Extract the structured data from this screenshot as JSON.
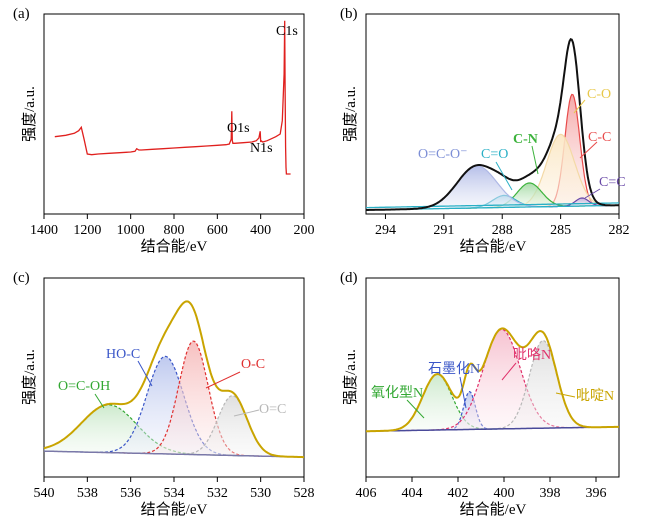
{
  "colors": {
    "axis": "#000000",
    "survey": "#e0201e",
    "c1s_envelope": "#111111",
    "c1s_baseline": "#2ab0c6",
    "c_c": "#e84a4a",
    "c_o": "#e8c84a",
    "c_n": "#3db33d",
    "c_eq_o": "#2ab0c6",
    "o_c_o": "#7d8fd6",
    "c_eq_c": "#6a4aa8",
    "o1s_envelope": "#c9a400",
    "o_c": "#e03030",
    "ho_c": "#3a56c8",
    "o_c_oh": "#33a833",
    "o_eq_c": "#b8b8b8",
    "o1s_baseline": "#7a78a8",
    "n1s_envelope": "#c9a400",
    "pyridinic": "#33a833",
    "graphitic": "#3a56c8",
    "pyrrolic": "#e0306a",
    "pyridine_n": "#b8b8b8",
    "n1s_baseline": "#4a4a9a"
  },
  "chart_data": [
    {
      "panel_label": "(a)",
      "type": "line",
      "xlabel": "结合能/eV",
      "ylabel": "强度/a.u.",
      "xlim": [
        1400,
        200
      ],
      "x_ticks": [
        1400,
        1200,
        1000,
        800,
        600,
        400,
        200
      ],
      "series": [
        {
          "x": [
            1350,
            1300,
            1260,
            1240,
            1228,
            1215,
            1200,
            1180,
            1150,
            1100,
            1050,
            1000,
            980,
            972,
            962,
            950,
            900,
            850,
            800,
            750,
            700,
            650,
            600,
            560,
            545,
            536,
            533,
            531,
            528,
            520,
            480,
            440,
            420,
            408,
            402,
            400,
            398,
            390,
            370,
            350,
            330,
            310,
            300,
            292,
            289,
            287,
            285,
            283,
            281,
            275,
            268,
            262
          ],
          "y": [
            0.13,
            0.14,
            0.155,
            0.175,
            0.2,
            0.11,
            0.0,
            -0.005,
            0.0,
            0.005,
            0.01,
            0.015,
            0.02,
            0.04,
            0.03,
            0.03,
            0.035,
            0.04,
            0.045,
            0.05,
            0.055,
            0.06,
            0.065,
            0.07,
            0.075,
            0.11,
            0.32,
            0.1,
            0.08,
            0.08,
            0.085,
            0.09,
            0.1,
            0.12,
            0.17,
            0.09,
            0.1,
            0.09,
            0.1,
            0.115,
            0.13,
            0.15,
            0.25,
            0.6,
            1.0,
            0.5,
            0.05,
            -0.1,
            -0.15,
            -0.15,
            -0.15,
            -0.15
          ]
        }
      ],
      "annotations": [
        "C1s",
        "O1s",
        "N1s"
      ]
    },
    {
      "panel_label": "(b)",
      "type": "line",
      "xlabel": "结合能/eV",
      "ylabel": "强度/a.u.",
      "xlim": [
        295,
        282
      ],
      "x_ticks": [
        294,
        291,
        288,
        285,
        282
      ],
      "components": [
        {
          "label": "C-C",
          "center": 284.4,
          "fwhm": 0.9,
          "height": 0.56
        },
        {
          "label": "C-O",
          "center": 285.0,
          "fwhm": 1.7,
          "height": 0.36
        },
        {
          "label": "C-N",
          "center": 286.6,
          "fwhm": 1.5,
          "height": 0.12
        },
        {
          "label": "C=O",
          "center": 287.9,
          "fwhm": 1.4,
          "height": 0.06
        },
        {
          "label": "O=C-O⁻",
          "center": 289.3,
          "fwhm": 2.4,
          "height": 0.21
        },
        {
          "label": "C=C",
          "center": 283.9,
          "fwhm": 0.8,
          "height": 0.04
        }
      ],
      "annotations": [
        "C-O",
        "C-C",
        "C-N",
        "C=O",
        "O=C-O⁻",
        "C=C"
      ]
    },
    {
      "panel_label": "(c)",
      "type": "line",
      "xlabel": "结合能/eV",
      "ylabel": "强度/a.u.",
      "xlim": [
        540,
        528
      ],
      "x_ticks": [
        540,
        538,
        536,
        534,
        532,
        530,
        528
      ],
      "components": [
        {
          "label": "O=C-OH",
          "center": 537.0,
          "fwhm": 3.0,
          "height": 0.24
        },
        {
          "label": "HO-C",
          "center": 534.4,
          "fwhm": 2.0,
          "height": 0.49
        },
        {
          "label": "O-C",
          "center": 533.1,
          "fwhm": 1.6,
          "height": 0.57
        },
        {
          "label": "O=C",
          "center": 531.3,
          "fwhm": 1.6,
          "height": 0.3
        }
      ],
      "annotations": [
        "O=C-OH",
        "HO-C",
        "O-C",
        "O=C"
      ]
    },
    {
      "panel_label": "(d)",
      "type": "line",
      "xlabel": "结合能/eV",
      "ylabel": "强度/a.u.",
      "xlim": [
        406,
        395
      ],
      "x_ticks": [
        406,
        404,
        402,
        400,
        398,
        396
      ],
      "components": [
        {
          "label": "氧化型N",
          "center": 402.9,
          "fwhm": 1.5,
          "height": 0.28
        },
        {
          "label": "石墨化N",
          "center": 401.5,
          "fwhm": 0.6,
          "height": 0.19
        },
        {
          "label": "吡咯N",
          "center": 400.1,
          "fwhm": 1.9,
          "height": 0.5
        },
        {
          "label": "吡啶N",
          "center": 398.3,
          "fwhm": 1.4,
          "height": 0.44
        }
      ],
      "annotations": [
        "氧化型N",
        "石墨化N",
        "吡咯N",
        "吡啶N"
      ]
    }
  ]
}
